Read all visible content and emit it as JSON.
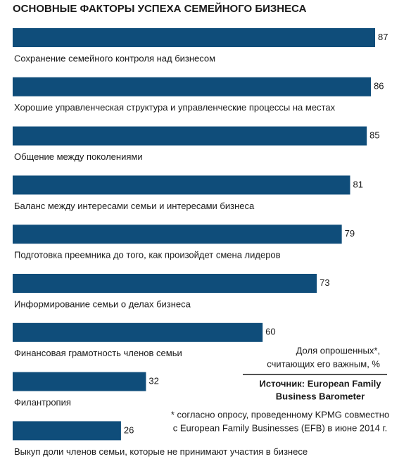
{
  "chart_data": {
    "type": "bar",
    "orientation": "horizontal",
    "title": "ОСНОВНЫЕ ФАКТОРЫ УСПЕХА СЕМЕЙНОГО БИЗНЕСА",
    "categories": [
      "Сохранение семейного контроля над бизнесом",
      "Хорошие управленческая структура и управленческие процессы на местах",
      "Общение между поколениями",
      "Баланс между интересами семьи и интересами бизнеса",
      "Подготовка преемника до того, как произойдет смена лидеров",
      "Информирование семьи о делах бизнеса",
      "Финансовая грамотность членов семьи",
      "Филантропия",
      "Выкуп доли членов семьи, которые не принимают участия в бизнесе"
    ],
    "values": [
      87,
      86,
      85,
      81,
      79,
      73,
      60,
      32,
      26
    ],
    "color": "#0f4d7a",
    "note": [
      "Доля опрошенных*,",
      "считающих его важным, %"
    ],
    "source": [
      "Источник: European Family",
      "Business Barometer"
    ],
    "footnote": [
      "* согласно опросу, проведенному KPMG совместно",
      "с European Family Businesses (EFB) в июне 2014 г."
    ]
  }
}
